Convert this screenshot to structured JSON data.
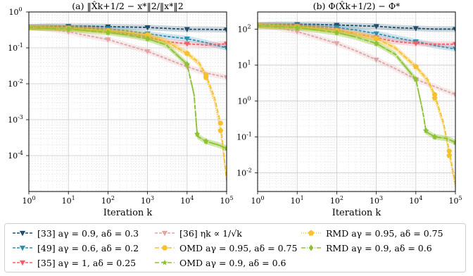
{
  "chart_data": [
    {
      "type": "line",
      "title": "(a) ‖X̂k+1/2 − x*‖2/‖x*‖2",
      "xlabel": "Iteration k",
      "ylabel": "",
      "xscale": "log",
      "yscale": "log",
      "xlim": [
        1,
        100000
      ],
      "ylim": [
        1e-05,
        1
      ],
      "grid": true,
      "x_ticks": [
        "10^0",
        "10^1",
        "10^2",
        "10^3",
        "10^4",
        "10^5"
      ],
      "y_ticks": [
        "10^-4",
        "10^-3",
        "10^-2",
        "10^-1",
        "10^0"
      ],
      "series": [
        {
          "key": "s33",
          "x": [
            1,
            3,
            10,
            30,
            100,
            300,
            1000,
            3000,
            10000,
            30000,
            100000
          ],
          "values": [
            0.38,
            0.4,
            0.4,
            0.4,
            0.39,
            0.38,
            0.37,
            0.35,
            0.33,
            0.33,
            0.32
          ]
        },
        {
          "key": "s49",
          "x": [
            1,
            3,
            10,
            30,
            100,
            300,
            1000,
            3000,
            10000,
            30000,
            100000
          ],
          "values": [
            0.38,
            0.38,
            0.37,
            0.36,
            0.34,
            0.3,
            0.25,
            0.21,
            0.18,
            0.14,
            0.1
          ]
        },
        {
          "key": "s35",
          "x": [
            1,
            3,
            10,
            30,
            100,
            300,
            1000,
            3000,
            10000,
            30000,
            100000
          ],
          "values": [
            0.38,
            0.38,
            0.36,
            0.34,
            0.3,
            0.25,
            0.2,
            0.15,
            0.13,
            0.12,
            0.13
          ]
        },
        {
          "key": "s36",
          "x": [
            1,
            3,
            10,
            30,
            100,
            300,
            1000,
            3000,
            10000,
            30000,
            100000
          ],
          "values": [
            0.38,
            0.34,
            0.28,
            0.22,
            0.17,
            0.12,
            0.08,
            0.05,
            0.03,
            0.02,
            0.015
          ]
        },
        {
          "key": "omd1",
          "x": [
            1,
            3,
            10,
            30,
            100,
            300,
            1000,
            3000,
            10000,
            20000,
            30000,
            50000,
            70000,
            100000
          ],
          "values": [
            0.37,
            0.36,
            0.35,
            0.33,
            0.3,
            0.27,
            0.23,
            0.15,
            0.07,
            0.04,
            0.018,
            0.004,
            0.0008,
            2e-05
          ]
        },
        {
          "key": "omd2",
          "x": [
            1,
            3,
            10,
            30,
            100,
            300,
            1000,
            3000,
            10000,
            15000,
            18000,
            18001,
            30000,
            60000,
            100000
          ],
          "values": [
            0.37,
            0.35,
            0.34,
            0.3,
            0.27,
            0.23,
            0.18,
            0.12,
            0.035,
            0.005,
            0.0004,
            0.00035,
            0.00025,
            0.0002,
            0.00016
          ]
        },
        {
          "key": "rmd1",
          "x": [
            1,
            3,
            10,
            30,
            100,
            300,
            1000,
            3000,
            10000,
            20000,
            30000,
            50000,
            70000,
            100000
          ],
          "values": [
            0.37,
            0.36,
            0.35,
            0.33,
            0.3,
            0.27,
            0.23,
            0.15,
            0.07,
            0.035,
            0.015,
            0.003,
            0.0005,
            2e-05
          ]
        },
        {
          "key": "rmd2",
          "x": [
            1,
            3,
            10,
            30,
            100,
            300,
            1000,
            3000,
            10000,
            15000,
            18000,
            18001,
            30000,
            60000,
            100000
          ],
          "values": [
            0.37,
            0.35,
            0.34,
            0.3,
            0.27,
            0.23,
            0.18,
            0.12,
            0.035,
            0.005,
            0.0004,
            0.00035,
            0.00025,
            0.0002,
            0.00016
          ]
        }
      ]
    },
    {
      "type": "line",
      "title": "(b) Φ(X̂k+1/2) − Φ*",
      "xlabel": "Iteration k",
      "ylabel": "",
      "xscale": "log",
      "yscale": "log",
      "xlim": [
        1,
        100000
      ],
      "ylim": [
        0.003,
        300
      ],
      "grid": true,
      "x_ticks": [
        "10^0",
        "10^1",
        "10^2",
        "10^3",
        "10^4",
        "10^5"
      ],
      "y_ticks": [
        "10^-2",
        "10^-1",
        "10^0",
        "10^1",
        "10^2"
      ],
      "series": [
        {
          "key": "s33",
          "x": [
            1,
            3,
            10,
            30,
            100,
            300,
            1000,
            3000,
            10000,
            30000,
            100000
          ],
          "values": [
            130,
            135,
            135,
            135,
            130,
            125,
            120,
            110,
            105,
            100,
            100
          ]
        },
        {
          "key": "s49",
          "x": [
            1,
            3,
            10,
            30,
            100,
            300,
            1000,
            3000,
            10000,
            30000,
            100000
          ],
          "values": [
            130,
            130,
            128,
            120,
            110,
            95,
            75,
            58,
            45,
            35,
            28
          ]
        },
        {
          "key": "s35",
          "x": [
            1,
            3,
            10,
            30,
            100,
            300,
            1000,
            3000,
            10000,
            30000,
            100000
          ],
          "values": [
            130,
            128,
            120,
            110,
            95,
            75,
            58,
            45,
            40,
            38,
            38
          ]
        },
        {
          "key": "s36",
          "x": [
            1,
            3,
            10,
            30,
            100,
            300,
            1000,
            3000,
            10000,
            30000,
            100000
          ],
          "values": [
            130,
            110,
            85,
            60,
            40,
            25,
            14,
            8,
            4,
            2.5,
            1.5
          ]
        },
        {
          "key": "omd1",
          "x": [
            1,
            3,
            10,
            30,
            100,
            300,
            1000,
            3000,
            10000,
            20000,
            30000,
            50000,
            70000,
            100000
          ],
          "values": [
            125,
            120,
            115,
            105,
            90,
            75,
            55,
            30,
            9,
            4,
            1.5,
            0.25,
            0.04,
            0.005
          ]
        },
        {
          "key": "omd2",
          "x": [
            1,
            3,
            10,
            30,
            100,
            300,
            1000,
            3000,
            10000,
            15000,
            18000,
            18001,
            30000,
            60000,
            100000
          ],
          "values": [
            125,
            118,
            110,
            95,
            80,
            60,
            40,
            20,
            4,
            0.5,
            0.15,
            0.14,
            0.1,
            0.09,
            0.07
          ]
        },
        {
          "key": "rmd1",
          "x": [
            1,
            3,
            10,
            30,
            100,
            300,
            1000,
            3000,
            10000,
            20000,
            30000,
            50000,
            70000,
            100000
          ],
          "values": [
            125,
            120,
            115,
            105,
            90,
            75,
            55,
            30,
            9,
            3.5,
            1.2,
            0.2,
            0.03,
            0.004
          ]
        },
        {
          "key": "rmd2",
          "x": [
            1,
            3,
            10,
            30,
            100,
            300,
            1000,
            3000,
            10000,
            15000,
            18000,
            18001,
            30000,
            60000,
            100000
          ],
          "values": [
            125,
            118,
            110,
            95,
            80,
            60,
            40,
            20,
            4,
            0.5,
            0.15,
            0.14,
            0.1,
            0.09,
            0.07
          ]
        }
      ]
    }
  ],
  "legend": {
    "placement": "bottom",
    "entries": [
      {
        "key": "s33",
        "label": "[33] aγ = 0.9, aδ = 0.3",
        "color": "#1f4e6b",
        "marker": "triangle-down",
        "dash": "4,2"
      },
      {
        "key": "s49",
        "label": "[49] aγ = 0.6, aδ = 0.2",
        "color": "#2a8fb0",
        "marker": "triangle-down",
        "dash": "4,2"
      },
      {
        "key": "s35",
        "label": "[35] aγ = 1, aδ = 0.25",
        "color": "#f0606a",
        "marker": "triangle-down",
        "dash": "4,2"
      },
      {
        "key": "s36",
        "label": "[36] ηk ∝ 1/√k",
        "color": "#e0a4a4",
        "marker": "triangle-down",
        "dash": "4,2"
      },
      {
        "key": "omd1",
        "label": "OMD aγ = 0.95, aδ = 0.75",
        "color": "#f5c12e",
        "marker": "circle",
        "dash": "6,3"
      },
      {
        "key": "omd2",
        "label": "OMD aγ = 0.9, aδ = 0.6",
        "color": "#8cc234",
        "marker": "star",
        "dash": "6,3"
      },
      {
        "key": "rmd1",
        "label": "RMD aγ = 0.95, aδ = 0.75",
        "color": "#f5c12e",
        "marker": "pentagon",
        "dash": "1,2"
      },
      {
        "key": "rmd2",
        "label": "RMD aγ = 0.9, aδ = 0.6",
        "color": "#8cc234",
        "marker": "diamond",
        "dash": "6,2,1,2"
      }
    ]
  }
}
